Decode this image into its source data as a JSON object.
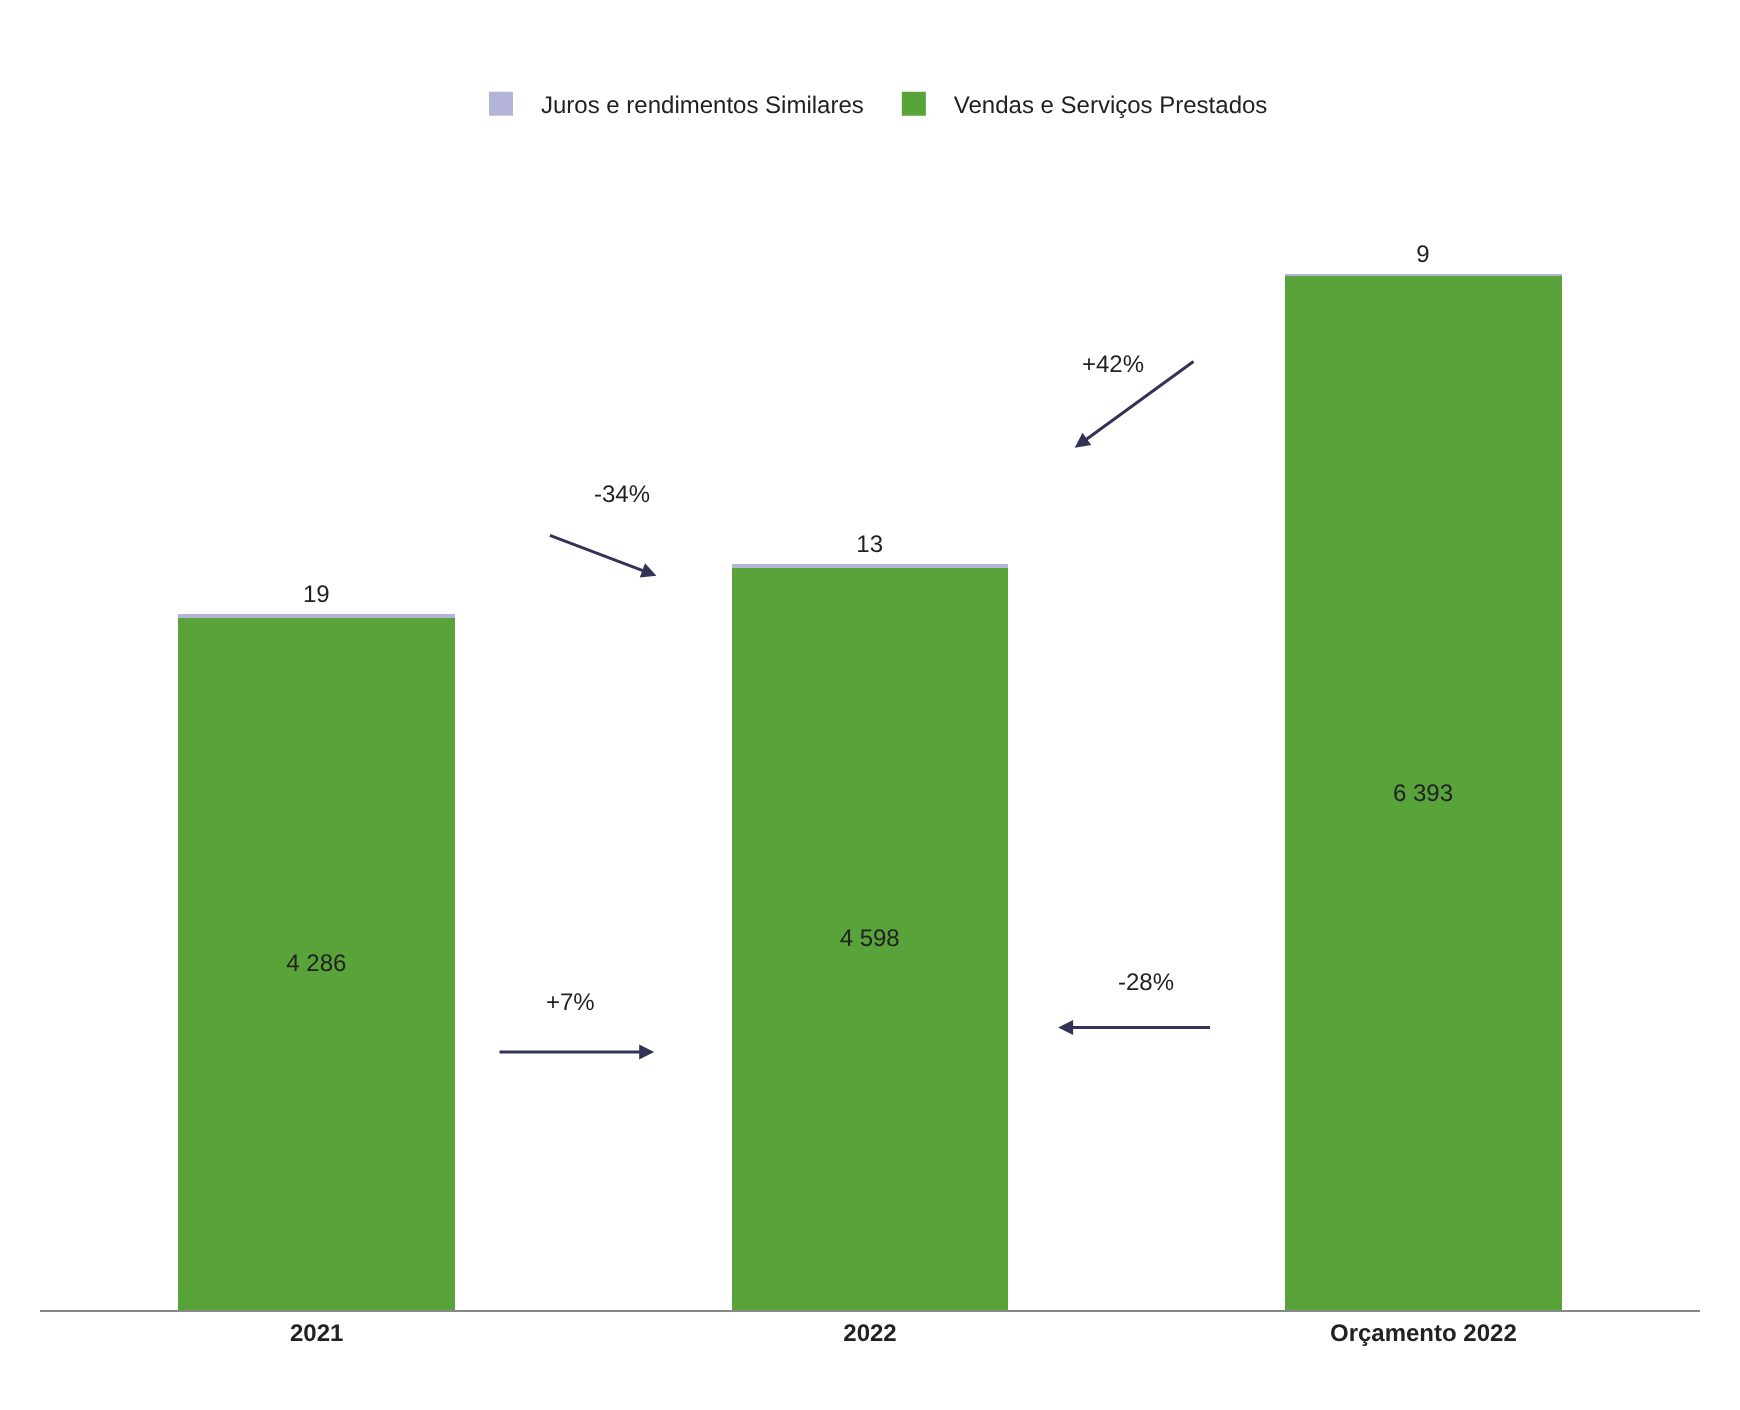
{
  "chart_data": {
    "type": "bar",
    "stacked": true,
    "legend": "top",
    "categories": [
      "2021",
      "2022",
      "Orçamento 2022"
    ],
    "series": [
      {
        "name": "Vendas e Serviços Prestados",
        "color": "#58a33a",
        "values": [
          4286,
          4598,
          6393
        ],
        "value_labels": [
          "4 286",
          "4 598",
          "6 393"
        ]
      },
      {
        "name": "Juros e rendimentos Similares",
        "color": "#b4b4d8",
        "values": [
          19,
          13,
          9
        ],
        "value_labels": [
          "19",
          "13",
          "9"
        ]
      }
    ],
    "annotations": [
      "-34%",
      "+42%",
      "+7%",
      "-28%"
    ]
  }
}
